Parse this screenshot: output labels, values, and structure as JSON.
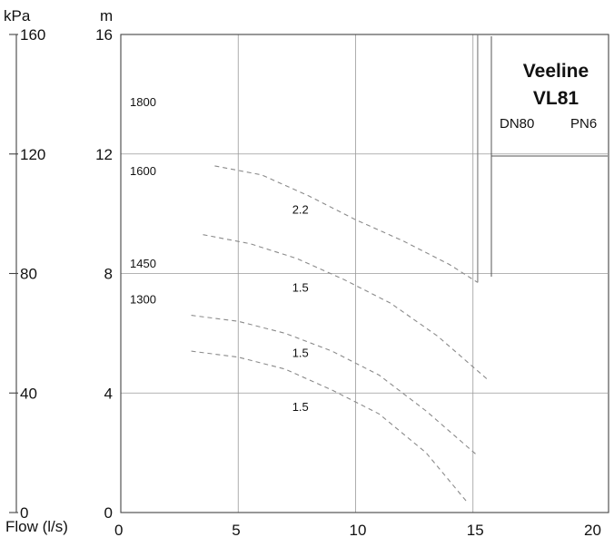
{
  "chart_data": {
    "type": "line",
    "title": "Veeline",
    "model": "VL81",
    "spec_dn": "DN80",
    "spec_pn": "PN6",
    "xlabel": "Flow (l/s)",
    "x_ticks": [
      "0",
      "5",
      "10",
      "15",
      "20"
    ],
    "xlim": [
      0,
      20
    ],
    "y_unit_left": "kPa",
    "y_ticks_left": [
      "0",
      "40",
      "80",
      "120",
      "160"
    ],
    "y_unit_right": "m",
    "y_ticks_right": [
      "0",
      "4",
      "8",
      "12",
      "16"
    ],
    "ylim": [
      0,
      16
    ],
    "grid": true,
    "series": [
      {
        "name": "1800",
        "x": [
          4.0,
          6.0,
          8.0,
          10.0,
          12.0,
          14.0,
          15.2
        ],
        "y": [
          11.6,
          11.3,
          10.6,
          9.8,
          9.1,
          8.3,
          7.7
        ]
      },
      {
        "name": "1600",
        "x": [
          3.5,
          5.5,
          7.5,
          9.5,
          11.5,
          13.5,
          15.7
        ],
        "y": [
          9.3,
          9.0,
          8.5,
          7.8,
          7.0,
          5.9,
          4.4
        ]
      },
      {
        "name": "1450",
        "x": [
          3.0,
          5.0,
          7.0,
          9.0,
          11.0,
          13.0,
          15.2
        ],
        "y": [
          6.6,
          6.4,
          6.0,
          5.4,
          4.6,
          3.4,
          1.9
        ]
      },
      {
        "name": "1300",
        "x": [
          3.0,
          5.0,
          7.0,
          9.0,
          11.0,
          13.0,
          14.8
        ],
        "y": [
          5.4,
          5.2,
          4.8,
          4.1,
          3.3,
          2.0,
          0.3
        ]
      }
    ],
    "power_labels": [
      {
        "text": "2.2",
        "x": 7.3,
        "y": 10.0
      },
      {
        "text": "1.5",
        "x": 7.3,
        "y": 7.4
      },
      {
        "text": "1.5",
        "x": 7.3,
        "y": 5.2
      },
      {
        "text": "1.5",
        "x": 7.3,
        "y": 3.4
      }
    ],
    "limit_line": {
      "x": [
        15.2,
        15.2
      ],
      "y": [
        7.7,
        16
      ]
    }
  }
}
